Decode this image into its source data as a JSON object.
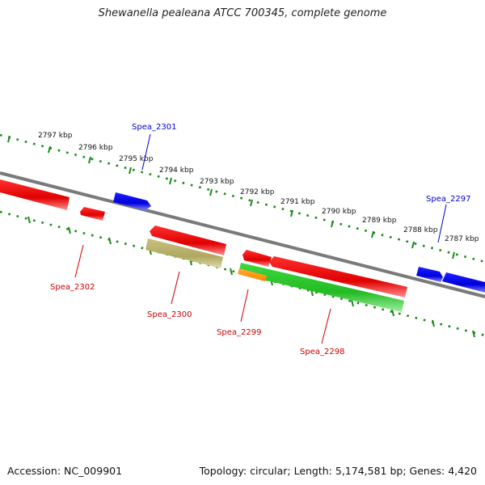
{
  "title": "Shewanella pealeana ATCC 700345, complete genome",
  "footer": {
    "accession": "Accession: NC_009901",
    "summary": "Topology: circular; Length: 5,174,581 bp; Genes: 4,420"
  },
  "kbp_labels": [
    "2797 kbp",
    "2796 kbp",
    "2795 kbp",
    "2794 kbp",
    "2793 kbp",
    "2792 kbp",
    "2791 kbp",
    "2790 kbp",
    "2789 kbp",
    "2788 kbp",
    "2787 kbp"
  ],
  "genes": [
    {
      "name": "Spea_2301",
      "color": "#0000cc"
    },
    {
      "name": "Spea_2297",
      "color": "#0000cc"
    },
    {
      "name": "Spea_2302",
      "color": "#cc0000"
    },
    {
      "name": "Spea_2300",
      "color": "#cc0000"
    },
    {
      "name": "Spea_2299",
      "color": "#cc0000"
    },
    {
      "name": "Spea_2298",
      "color": "#cc0000"
    }
  ],
  "colors": {
    "backbone": "#808080",
    "ruler": "#1a8a1a",
    "forward_gene": "#1010ee",
    "reverse_gene": "#ee0000",
    "khaki_feature": "#b8b070",
    "green_feature": "#33cc33",
    "orange_feature": "#ff8800"
  }
}
